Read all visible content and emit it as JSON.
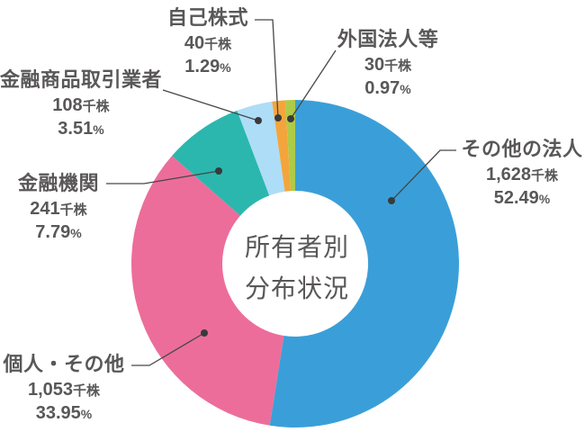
{
  "chart_data": {
    "type": "pie",
    "donut": true,
    "title": "所有者別分布状況",
    "categories": [
      "その他の法人",
      "個人・その他",
      "金融機関",
      "金融商品取引業者",
      "自己株式",
      "外国法人等"
    ],
    "values": [
      52.49,
      33.95,
      7.79,
      3.51,
      1.29,
      0.97
    ],
    "shares_thousands": [
      1628,
      1053,
      241,
      108,
      40,
      30
    ],
    "unit_shares": "千株",
    "unit_percent": "%",
    "colors": [
      "#3A9FD8",
      "#EC6D9A",
      "#2BB7AE",
      "#AEDDF7",
      "#F3A53C",
      "#ADCB48"
    ],
    "start_angle_deg": 0,
    "direction": "clockwise",
    "legend_position": "none",
    "label_style": "direct callout labels with leader lines and dots"
  },
  "center_label": {
    "line1": "所有者別",
    "line2": "分布状況"
  },
  "labels": [
    {
      "slug": "other-corporations",
      "name": "その他の法人",
      "value": "1,628",
      "unit": "千株",
      "percent": "52.49",
      "percent_unit": "%"
    },
    {
      "slug": "individuals-others",
      "name": "個人・その他",
      "value": "1,053",
      "unit": "千株",
      "percent": "33.95",
      "percent_unit": "%"
    },
    {
      "slug": "financial-institutions",
      "name": "金融機関",
      "value": "241",
      "unit": "千株",
      "percent": "7.79",
      "percent_unit": "%"
    },
    {
      "slug": "securities-dealers",
      "name": "金融商品取引業者",
      "value": "108",
      "unit": "千株",
      "percent": "3.51",
      "percent_unit": "%"
    },
    {
      "slug": "treasury-stock",
      "name": "自己株式",
      "value": "40",
      "unit": "千株",
      "percent": "1.29",
      "percent_unit": "%"
    },
    {
      "slug": "foreign-corporations",
      "name": "外国法人等",
      "value": "30",
      "unit": "千株",
      "percent": "0.97",
      "percent_unit": "%"
    }
  ],
  "colors": {
    "text": "#595757",
    "leader_line": "#474747",
    "leader_dot": "#3a3a3a",
    "background": "#ffffff"
  }
}
